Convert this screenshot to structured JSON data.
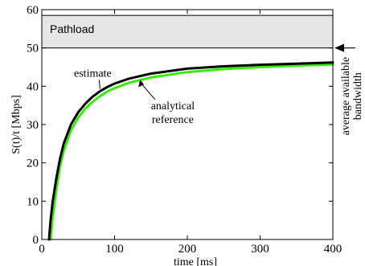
{
  "chart_data": {
    "type": "line",
    "title": "",
    "xlabel": "time [ms]",
    "ylabel": "S(t)/t [Mbps]",
    "xlim": [
      0,
      400
    ],
    "ylim": [
      0,
      60
    ],
    "xticks": [
      0,
      100,
      200,
      300,
      400
    ],
    "yticks": [
      0,
      10,
      20,
      30,
      40,
      50,
      60
    ],
    "grid": false,
    "legend": "none",
    "band": {
      "label": "Pathload",
      "y_min": 50,
      "y_max": 58.5,
      "color": "#e6e6e6"
    },
    "series": [
      {
        "name": "estimate",
        "color": "#000000",
        "x": [
          10,
          12,
          15,
          20,
          25,
          30,
          40,
          50,
          60,
          70,
          80,
          90,
          100,
          120,
          150,
          200,
          250,
          300,
          350,
          400
        ],
        "y": [
          0,
          5,
          10,
          16,
          21,
          25,
          30,
          33.2,
          35.5,
          37.3,
          38.7,
          39.8,
          40.7,
          42,
          43.3,
          44.6,
          45.2,
          45.6,
          45.9,
          46.2
        ]
      },
      {
        "name": "analytical reference",
        "color": "#33ee00",
        "x": [
          12,
          15,
          20,
          25,
          30,
          40,
          50,
          60,
          70,
          80,
          90,
          100,
          120,
          150,
          200,
          250,
          300,
          350,
          400
        ],
        "y": [
          0,
          6,
          13,
          19,
          23,
          28.5,
          31.8,
          34.2,
          36,
          37.4,
          38.6,
          39.5,
          40.9,
          42.3,
          43.7,
          44.5,
          45,
          45.4,
          45.7
        ]
      }
    ],
    "annotations": [
      {
        "text": "estimate",
        "x": 70,
        "y": 42.5,
        "arrow_to": [
          80,
          38.9
        ]
      },
      {
        "text_lines": [
          "analytical",
          "reference"
        ],
        "x": 180,
        "y": 34,
        "arrow_to": [
          135,
          41.7
        ]
      },
      {
        "text_lines": [
          "average available",
          "bandwidth"
        ],
        "arrow_to_y": 50
      }
    ]
  }
}
